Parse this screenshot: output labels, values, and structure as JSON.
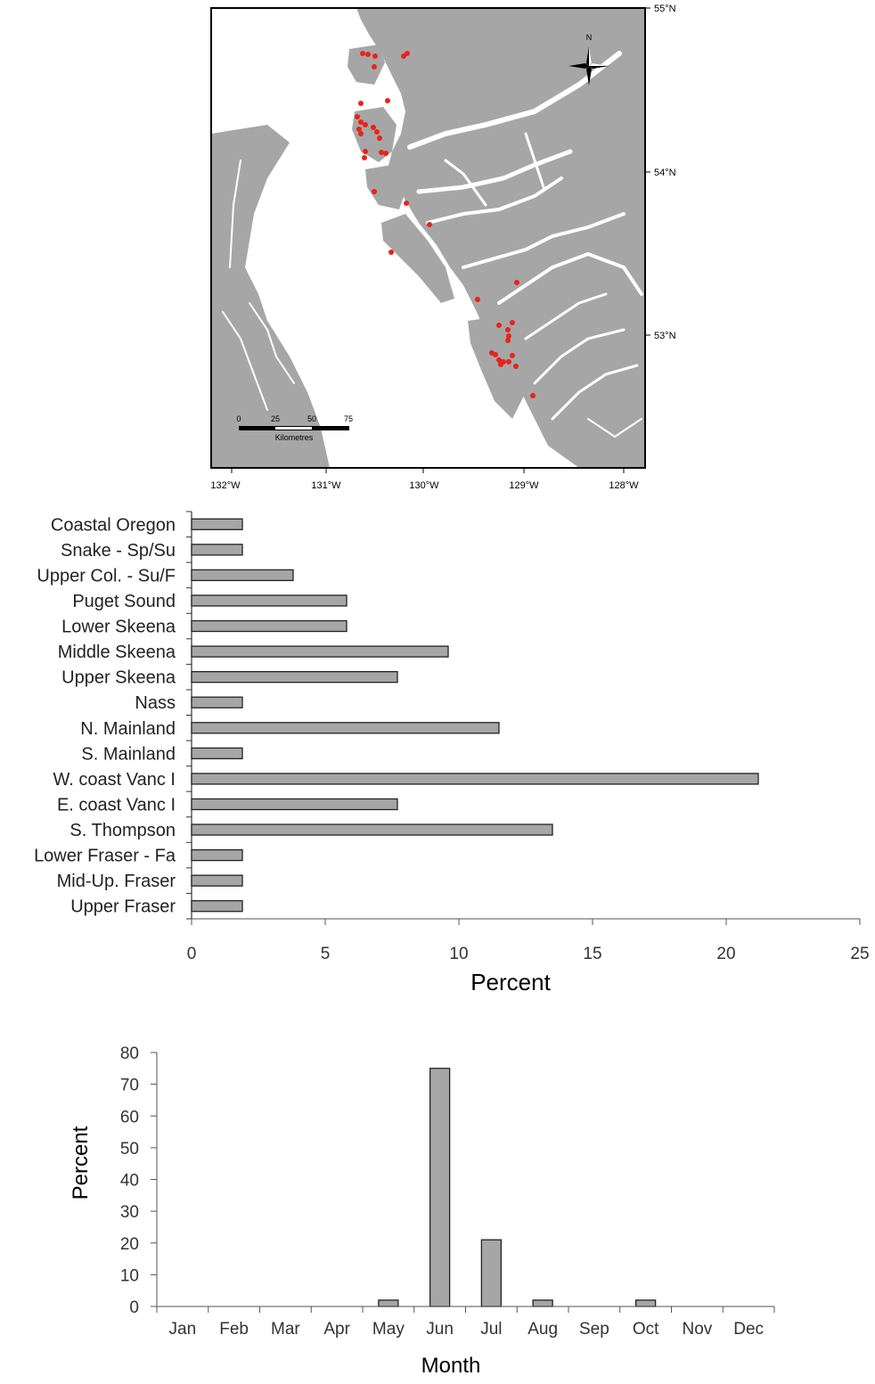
{
  "map": {
    "lat_labels": [
      "55°N",
      "54°N",
      "53°N"
    ],
    "lon_labels": [
      "132°W",
      "131°W",
      "130°W",
      "129°W",
      "128°W"
    ],
    "north_label": "N",
    "scale_ticks": [
      "0",
      "25",
      "50",
      "75"
    ],
    "scale_unit": "Kilometres",
    "colors": {
      "land": "#a6a6a6",
      "water": "#ffffff",
      "point": "#e8231b"
    }
  },
  "chart_data": [
    {
      "type": "bar",
      "orientation": "horizontal",
      "categories": [
        "Coastal Oregon",
        "Snake - Sp/Su",
        "Upper Col. - Su/F",
        "Puget Sound",
        "Lower Skeena",
        "Middle Skeena",
        "Upper Skeena",
        "Nass",
        "N. Mainland",
        "S. Mainland",
        "W. coast Vanc I",
        "E. coast Vanc I",
        "S. Thompson",
        "Lower Fraser - Fa",
        "Mid-Up. Fraser",
        "Upper Fraser"
      ],
      "values": [
        1.9,
        1.9,
        3.8,
        5.8,
        5.8,
        9.6,
        7.7,
        1.9,
        11.5,
        1.9,
        21.2,
        7.7,
        13.5,
        1.9,
        1.9,
        1.9
      ],
      "xlabel": "Percent",
      "ylabel": "",
      "xlim": [
        0,
        25
      ],
      "xticks": [
        "0",
        "5",
        "10",
        "15",
        "20",
        "25"
      ],
      "grid": false,
      "bar_color": "#a6a6a6"
    },
    {
      "type": "bar",
      "orientation": "vertical",
      "categories": [
        "Jan",
        "Feb",
        "Mar",
        "Apr",
        "May",
        "Jun",
        "Jul",
        "Aug",
        "Sep",
        "Oct",
        "Nov",
        "Dec"
      ],
      "values": [
        0,
        0,
        0,
        0,
        2,
        75,
        21,
        2,
        0,
        2,
        0,
        0
      ],
      "xlabel": "Month",
      "ylabel": "Percent",
      "ylim": [
        0,
        80
      ],
      "yticks": [
        "0",
        "10",
        "20",
        "30",
        "40",
        "50",
        "60",
        "70",
        "80"
      ],
      "grid": false,
      "bar_color": "#a6a6a6"
    }
  ]
}
